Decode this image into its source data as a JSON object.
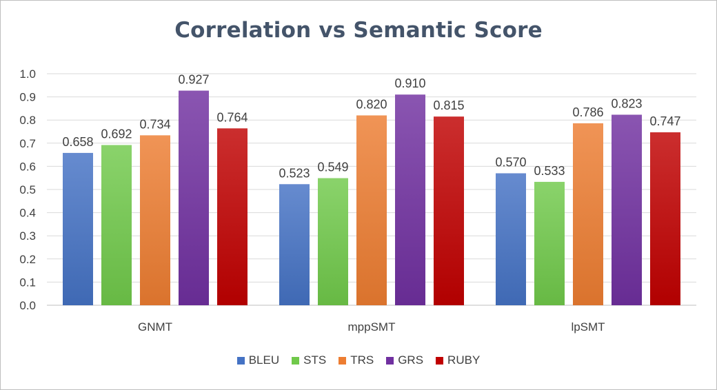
{
  "chart_data": {
    "type": "bar",
    "title": "Correlation vs Semantic Score",
    "categories": [
      "GNMT",
      "mppSMT",
      "lpSMT"
    ],
    "series": [
      {
        "name": "BLEU",
        "color": "#4472c4",
        "values": [
          0.658,
          0.523,
          0.57
        ],
        "labels": [
          "0.658",
          "0.523",
          "0.570"
        ]
      },
      {
        "name": "STS",
        "color": "#70c94a",
        "values": [
          0.692,
          0.549,
          0.533
        ],
        "labels": [
          "0.692",
          "0.549",
          "0.533"
        ]
      },
      {
        "name": "TRS",
        "color": "#ed7d31",
        "values": [
          0.734,
          0.82,
          0.786
        ],
        "labels": [
          "0.734",
          "0.820",
          "0.786"
        ]
      },
      {
        "name": "GRS",
        "color": "#7030a0",
        "values": [
          0.927,
          0.91,
          0.823
        ],
        "labels": [
          "0.927",
          "0.910",
          "0.823"
        ]
      },
      {
        "name": "RUBY",
        "color": "#c00000",
        "values": [
          0.764,
          0.815,
          0.747
        ],
        "labels": [
          "0.764",
          "0.815",
          "0.747"
        ]
      }
    ],
    "ylim": [
      0.0,
      1.0
    ],
    "yticks": [
      "0.0",
      "0.1",
      "0.2",
      "0.3",
      "0.4",
      "0.5",
      "0.6",
      "0.7",
      "0.8",
      "0.9",
      "1.0"
    ],
    "xlabel": "",
    "ylabel": "",
    "grid": true,
    "legend_position": "bottom"
  }
}
